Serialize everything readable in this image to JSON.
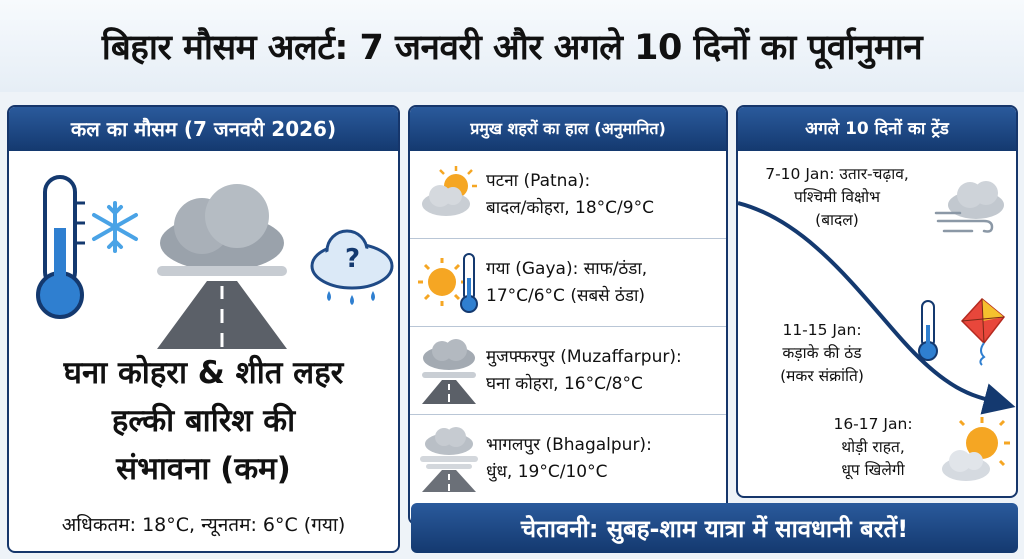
{
  "title": "बिहार मौसम अलर्ट: 7 जनवरी और अगले 10 दिनों का पूर्वानुमान",
  "left_panel": {
    "header": "कल का मौसम (7 जनवरी 2026)",
    "headline_1": "घना कोहरा & शीत लहर",
    "headline_2": "हल्की बारिश की",
    "headline_3": "संभावना (कम)",
    "minmax": "अधिकतम: 18°C, न्यूनतम: 6°C (गया)"
  },
  "cities_panel": {
    "header": "प्रमुख शहरों का हाल (अनुमानित)",
    "cities": [
      {
        "line1": "पटना (Patna):",
        "line2": "बादल/कोहरा, 18°C/9°C",
        "icon": "cloud-sun-icon"
      },
      {
        "line1": "गया (Gaya): साफ/ठंडा,",
        "line2": "17°C/6°C (सबसे ठंडा)",
        "icon": "sun-thermometer-icon"
      },
      {
        "line1": "मुजफ्फरपुर (Muzaffarpur):",
        "line2": "घना कोहरा, 16°C/8°C",
        "icon": "fog-road-icon"
      },
      {
        "line1": "भागलपुर (Bhagalpur):",
        "line2": "धुंध, 19°C/10°C",
        "icon": "mist-road-icon"
      }
    ]
  },
  "trend_panel": {
    "header": "अगले 10 दिनों का ट्रेंड",
    "t1_line1": "7-10 Jan: उतार-चढ़ाव,",
    "t1_line2": "पश्चिमी विक्षोभ",
    "t1_line3": "(बादल)",
    "t2_line1": "11-15 Jan:",
    "t2_line2": "कड़ाके की ठंड",
    "t2_line3": "(मकर संक्रांति)",
    "t3_line1": "16-17 Jan:",
    "t3_line2": "थोड़ी राहत,",
    "t3_line3": "धूप खिलेगी"
  },
  "warning": "चेतावनी: सुबह-शाम यात्रा में सावधानी बरतें!",
  "colors": {
    "navy": "#16366b",
    "header_blue": "#1f4a86",
    "sun": "#f5a623",
    "thermo": "#2f7fd0"
  }
}
